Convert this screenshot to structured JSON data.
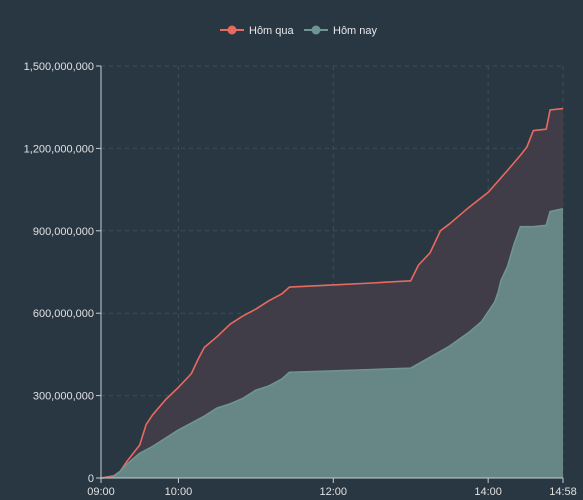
{
  "colors": {
    "background": "#293743",
    "grid": "#3f4e5a",
    "axis": "#c8ccd0",
    "tick_text": "#e0e0e0",
    "series_yesterday": "#e86a5e",
    "series_yesterday_fill": "#403c48",
    "series_today": "#6e9494",
    "series_today_fill": "#678787"
  },
  "chart_data": {
    "type": "area",
    "title": "",
    "xlabel": "",
    "ylabel": "",
    "x_format": "time HH:MM",
    "xlim": [
      "09:00",
      "14:58"
    ],
    "ylim": [
      0,
      1500000000
    ],
    "x_ticks": [
      "09:00",
      "10:00",
      "12:00",
      "14:00",
      "14:58"
    ],
    "y_ticks": [
      "0",
      "300,000,000",
      "600,000,000",
      "900,000,000",
      "1,200,000,000",
      "1,500,000,000"
    ],
    "grid": true,
    "legend_position": "top-center",
    "series": [
      {
        "name": "Hôm qua",
        "color": "#e86a5e",
        "points": [
          [
            "09:00",
            0
          ],
          [
            "09:10",
            8000000
          ],
          [
            "09:15",
            25000000
          ],
          [
            "09:20",
            60000000
          ],
          [
            "09:30",
            120000000
          ],
          [
            "09:35",
            195000000
          ],
          [
            "09:40",
            230000000
          ],
          [
            "09:50",
            285000000
          ],
          [
            "10:00",
            330000000
          ],
          [
            "10:10",
            380000000
          ],
          [
            "10:15",
            430000000
          ],
          [
            "10:20",
            475000000
          ],
          [
            "10:30",
            515000000
          ],
          [
            "10:40",
            560000000
          ],
          [
            "10:50",
            590000000
          ],
          [
            "11:00",
            615000000
          ],
          [
            "11:10",
            645000000
          ],
          [
            "11:20",
            670000000
          ],
          [
            "11:26",
            695000000
          ],
          [
            "12:00",
            703000000
          ],
          [
            "12:30",
            710000000
          ],
          [
            "13:00",
            718000000
          ],
          [
            "13:06",
            775000000
          ],
          [
            "13:15",
            820000000
          ],
          [
            "13:23",
            900000000
          ],
          [
            "13:30",
            925000000
          ],
          [
            "13:45",
            985000000
          ],
          [
            "14:00",
            1040000000
          ],
          [
            "14:15",
            1120000000
          ],
          [
            "14:25",
            1175000000
          ],
          [
            "14:30",
            1205000000
          ],
          [
            "14:35",
            1265000000
          ],
          [
            "14:45",
            1270000000
          ],
          [
            "14:48",
            1340000000
          ],
          [
            "14:58",
            1345000000
          ]
        ]
      },
      {
        "name": "Hôm nay",
        "color": "#6e9494",
        "points": [
          [
            "09:00",
            0
          ],
          [
            "09:10",
            3000000
          ],
          [
            "09:15",
            25000000
          ],
          [
            "09:20",
            50000000
          ],
          [
            "09:30",
            90000000
          ],
          [
            "09:40",
            115000000
          ],
          [
            "09:50",
            145000000
          ],
          [
            "10:00",
            175000000
          ],
          [
            "10:10",
            200000000
          ],
          [
            "10:20",
            225000000
          ],
          [
            "10:30",
            255000000
          ],
          [
            "10:40",
            270000000
          ],
          [
            "10:50",
            290000000
          ],
          [
            "11:00",
            320000000
          ],
          [
            "11:10",
            335000000
          ],
          [
            "11:20",
            360000000
          ],
          [
            "11:26",
            385000000
          ],
          [
            "12:00",
            390000000
          ],
          [
            "12:30",
            395000000
          ],
          [
            "13:00",
            400000000
          ],
          [
            "13:15",
            440000000
          ],
          [
            "13:30",
            480000000
          ],
          [
            "13:45",
            530000000
          ],
          [
            "13:55",
            570000000
          ],
          [
            "14:00",
            605000000
          ],
          [
            "14:05",
            640000000
          ],
          [
            "14:08",
            680000000
          ],
          [
            "14:10",
            720000000
          ],
          [
            "14:15",
            770000000
          ],
          [
            "14:20",
            850000000
          ],
          [
            "14:25",
            915000000
          ],
          [
            "14:35",
            915000000
          ],
          [
            "14:45",
            920000000
          ],
          [
            "14:48",
            970000000
          ],
          [
            "14:58",
            980000000
          ]
        ]
      }
    ]
  }
}
